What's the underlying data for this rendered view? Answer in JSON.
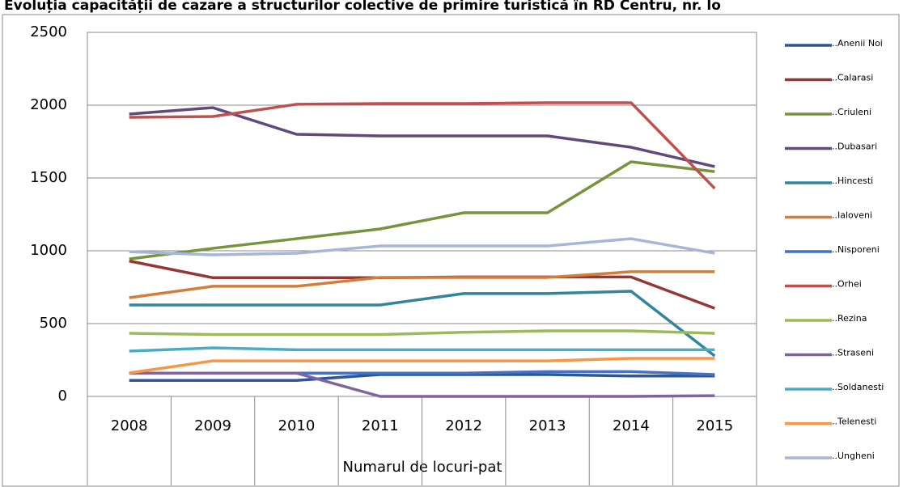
{
  "chart_data": {
    "type": "line",
    "title": "Evoluția capacității de cazare a structurilor colective de primire turistică în RD Centru, nr. lo",
    "x_label": "Numarul de locuri-pat",
    "categories": [
      "2008",
      "2009",
      "2010",
      "2011",
      "2012",
      "2013",
      "2014",
      "2015"
    ],
    "ylim": [
      0,
      2500
    ],
    "yticks": [
      0,
      500,
      1000,
      1500,
      2000,
      2500
    ],
    "grid": true,
    "legend": "right",
    "series": [
      {
        "name": "..Anenii Noi",
        "color": "#2f5597",
        "values": [
          110,
          110,
          110,
          150,
          150,
          150,
          140,
          140
        ]
      },
      {
        "name": "..Calarasi",
        "color": "#953735",
        "values": [
          930,
          815,
          815,
          815,
          820,
          820,
          820,
          605
        ]
      },
      {
        "name": "..Criuleni",
        "color": "#77933c",
        "values": [
          944,
          1017,
          1083,
          1150,
          1261,
          1261,
          1611,
          1544
        ]
      },
      {
        "name": "..Dubasari",
        "color": "#604a7b",
        "values": [
          1939,
          1983,
          1800,
          1789,
          1789,
          1789,
          1711,
          1578
        ]
      },
      {
        "name": "..Hincesti",
        "color": "#31859c",
        "values": [
          628,
          628,
          628,
          628,
          706,
          706,
          722,
          278
        ]
      },
      {
        "name": "..Ialoveni",
        "color": "#d27d3a",
        "values": [
          678,
          756,
          756,
          817,
          817,
          817,
          856,
          856
        ]
      },
      {
        "name": "..Nisporeni",
        "color": "#4472c4",
        "values": [
          160,
          160,
          160,
          160,
          160,
          170,
          170,
          150
        ]
      },
      {
        "name": "..Orhei",
        "color": "#c0504d",
        "values": [
          1917,
          1922,
          2006,
          2011,
          2011,
          2017,
          2017,
          1428
        ]
      },
      {
        "name": "..Rezina",
        "color": "#9bbb59",
        "values": [
          433,
          425,
          425,
          425,
          440,
          450,
          450,
          433
        ]
      },
      {
        "name": "..Straseni",
        "color": "#8064a2",
        "values": [
          160,
          160,
          160,
          0,
          0,
          0,
          0,
          5
        ]
      },
      {
        "name": "..Soldanesti",
        "color": "#4bacc6",
        "values": [
          311,
          333,
          320,
          320,
          320,
          320,
          320,
          320
        ]
      },
      {
        "name": "..Telenesti",
        "color": "#f79646",
        "values": [
          161,
          244,
          244,
          244,
          244,
          244,
          261,
          261
        ]
      },
      {
        "name": "..Ungheni",
        "color": "#a5b6d8",
        "values": [
          994,
          972,
          983,
          1033,
          1033,
          1033,
          1083,
          983
        ]
      }
    ]
  }
}
